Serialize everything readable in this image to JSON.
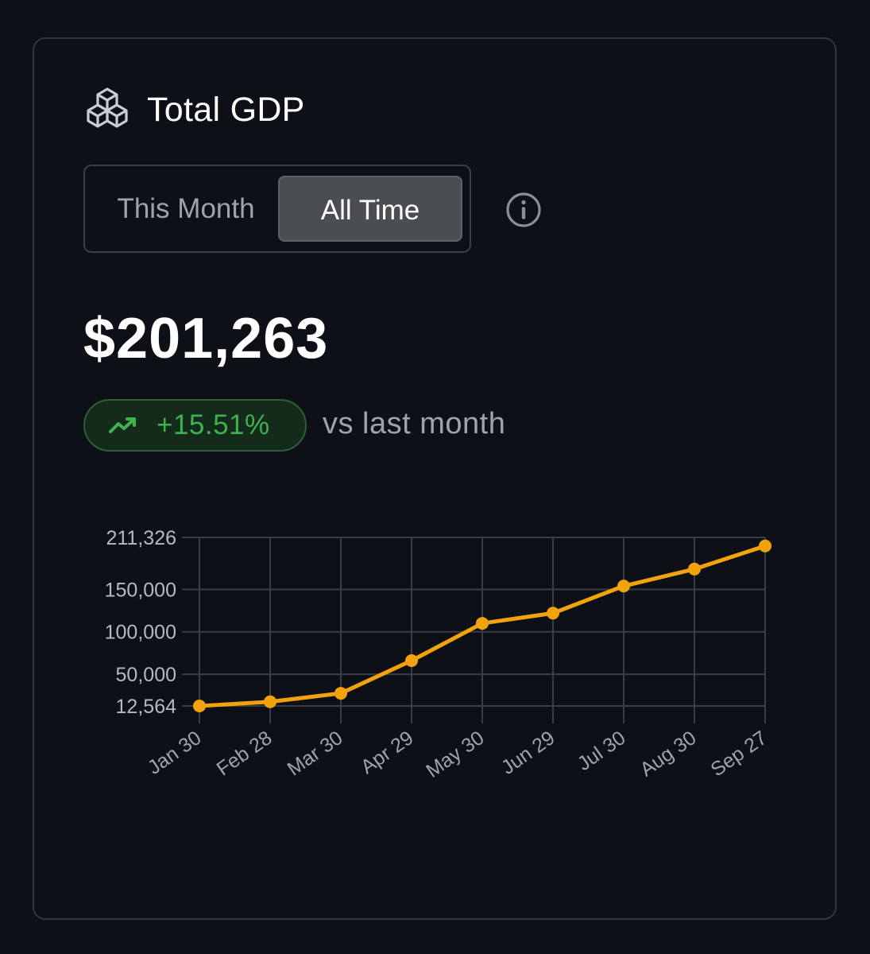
{
  "header": {
    "title": "Total GDP",
    "icon": "cubes-icon"
  },
  "toggle": {
    "options": [
      "This Month",
      "All Time"
    ],
    "selected": "All Time"
  },
  "info": {
    "icon": "info-icon"
  },
  "summary": {
    "amount": "$201,263",
    "change": "+15.51%",
    "change_icon": "trending-up-icon",
    "comparison": "vs last month"
  },
  "colors": {
    "background": "#0d1117",
    "card_border": "#30363d",
    "accent_line": "#f2a20c",
    "positive": "#3fb14e",
    "badge_bg": "#142a1a"
  },
  "chart_data": {
    "type": "line",
    "title": "",
    "xlabel": "",
    "ylabel": "",
    "categories": [
      "Jan 30",
      "Feb 28",
      "Mar 30",
      "Apr 29",
      "May 30",
      "Jun 29",
      "Jul 30",
      "Aug 30",
      "Sep 27"
    ],
    "series": [
      {
        "values": [
          12564,
          17500,
          27500,
          66000,
          110000,
          122000,
          154000,
          174000,
          201263
        ],
        "color": "#f2a20c"
      }
    ],
    "y_ticks": [
      12564,
      50000,
      100000,
      150000,
      211326
    ],
    "y_tick_labels": [
      "12,564",
      "50,000",
      "100,000",
      "150,000",
      "211,326"
    ],
    "ylim": [
      12564,
      211326
    ],
    "grid": true,
    "legend": "none"
  }
}
